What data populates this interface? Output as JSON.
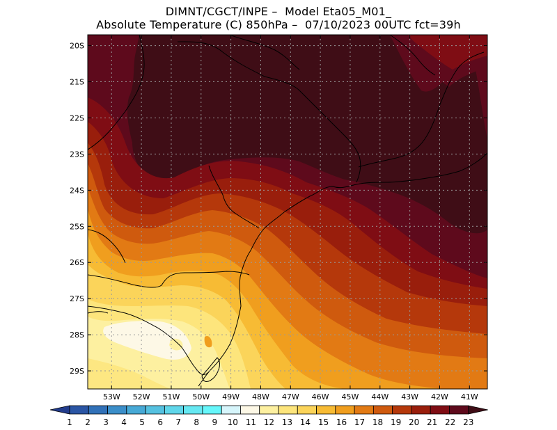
{
  "title": {
    "line1": "DIMNT/CGCT/INPE –  Model Eta05_M01_",
    "line2": "Absolute Temperature (C) 850hPa –  07/10/2023 00UTC fct=39h"
  },
  "map": {
    "lat_labels": [
      "20S",
      "21S",
      "22S",
      "23S",
      "24S",
      "25S",
      "26S",
      "27S",
      "28S",
      "29S"
    ],
    "lon_labels": [
      "53W",
      "52W",
      "51W",
      "50W",
      "49W",
      "48W",
      "47W",
      "46W",
      "45W",
      "44W",
      "43W",
      "42W",
      "41W"
    ],
    "lat_range": [
      -29.5,
      -19.7
    ],
    "lon_range": [
      -53.8,
      -40.4
    ],
    "grid": true,
    "grid_style": "dotted"
  },
  "colorbar": {
    "labels": [
      "1",
      "2",
      "3",
      "4",
      "5",
      "6",
      "7",
      "8",
      "9",
      "10",
      "11",
      "12",
      "13",
      "14",
      "15",
      "16",
      "17",
      "18",
      "19",
      "20",
      "21",
      "22",
      "23"
    ],
    "colors": [
      "#223c8c",
      "#2a55a4",
      "#3171b8",
      "#3b8ec9",
      "#47a9d6",
      "#55c1e0",
      "#5fd6ea",
      "#66e8f2",
      "#66f7fb",
      "#d6f5fb",
      "#fdf8e6",
      "#fdf0a0",
      "#fde57c",
      "#fbd45a",
      "#f7bb34",
      "#f09e1e",
      "#e27a14",
      "#cf5a0e",
      "#b5380b",
      "#991e0c",
      "#7f0d14",
      "#5e0a1c",
      "#3f0d16"
    ]
  }
}
